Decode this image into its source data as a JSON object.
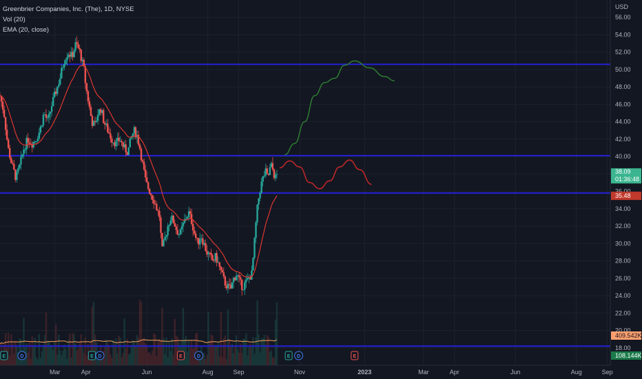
{
  "legend": {
    "title": "Greenbrier Companies, Inc. (The), 1D, NYSE",
    "volume": "Vol (20)",
    "ema": "EMA (20, close)"
  },
  "colors": {
    "background": "#131722",
    "up": "#26a69a",
    "down": "#ef5350",
    "ema": "#e0372f",
    "hline": "#2421d8",
    "green_projection": "#2e7d32",
    "red_projection": "#c62828",
    "vol_ma": "#f7a35c",
    "price_badge": "#3bb58f",
    "ema_badge": "#c0392b",
    "vol_badge": "#ff9f6e",
    "vol_badge2": "#1b7a4a",
    "text": "#b2b5be"
  },
  "chart_data": {
    "type": "candlestick",
    "title": "Greenbrier Companies, Inc. (The), 1D, NYSE",
    "currency": "USD",
    "ylim": [
      16.0,
      58.0
    ],
    "y_ticks": [
      "56.00",
      "54.00",
      "52.00",
      "50.00",
      "48.00",
      "46.00",
      "44.00",
      "42.00",
      "40.00",
      "38.00",
      "36.00",
      "34.00",
      "32.00",
      "30.00",
      "28.00",
      "26.00",
      "24.00",
      "22.00",
      "20.00",
      "18.00"
    ],
    "x_ticks": [
      "Mar",
      "Apr",
      "Jun",
      "Aug",
      "Sep",
      "Nov",
      "2023",
      "Mar",
      "Apr",
      "Jun",
      "Aug",
      "Sep"
    ],
    "x_tick_days": [
      55,
      86,
      147,
      208,
      239,
      300,
      365,
      424,
      455,
      516,
      577,
      608
    ],
    "xlim": [
      0,
      611
    ],
    "price_anchors": [
      [
        0,
        47
      ],
      [
        4,
        45
      ],
      [
        8,
        41
      ],
      [
        12,
        39
      ],
      [
        16,
        37.5
      ],
      [
        20,
        39
      ],
      [
        24,
        41
      ],
      [
        28,
        42
      ],
      [
        32,
        41.5
      ],
      [
        36,
        42
      ],
      [
        40,
        43
      ],
      [
        44,
        45
      ],
      [
        48,
        44
      ],
      [
        52,
        46
      ],
      [
        56,
        47.5
      ],
      [
        60,
        49
      ],
      [
        64,
        51
      ],
      [
        68,
        52
      ],
      [
        72,
        51.5
      ],
      [
        76,
        53
      ],
      [
        80,
        52
      ],
      [
        84,
        50
      ],
      [
        86,
        48
      ],
      [
        89,
        46
      ],
      [
        92,
        44
      ],
      [
        95,
        43.5
      ],
      [
        98,
        45
      ],
      [
        101,
        45.5
      ],
      [
        104,
        44
      ],
      [
        108,
        43
      ],
      [
        112,
        42
      ],
      [
        116,
        41.5
      ],
      [
        120,
        42
      ],
      [
        124,
        41
      ],
      [
        128,
        40.5
      ],
      [
        131,
        42
      ],
      [
        134,
        43
      ],
      [
        137,
        42.5
      ],
      [
        140,
        41
      ],
      [
        143,
        39
      ],
      [
        146,
        37
      ],
      [
        150,
        36
      ],
      [
        154,
        35
      ],
      [
        157,
        34
      ],
      [
        160,
        33
      ],
      [
        162,
        29
      ],
      [
        165,
        30.5
      ],
      [
        168,
        32
      ],
      [
        171,
        33
      ],
      [
        174,
        32.5
      ],
      [
        177,
        31.5
      ],
      [
        180,
        31
      ],
      [
        183,
        32
      ],
      [
        186,
        33
      ],
      [
        189,
        33.5
      ],
      [
        192,
        32.5
      ],
      [
        195,
        31
      ],
      [
        198,
        30
      ],
      [
        201,
        31
      ],
      [
        204,
        30
      ],
      [
        207,
        29
      ],
      [
        210,
        28.5
      ],
      [
        213,
        28
      ],
      [
        216,
        28.5
      ],
      [
        219,
        27.5
      ],
      [
        222,
        26.5
      ],
      [
        225,
        25.5
      ],
      [
        228,
        25
      ],
      [
        231,
        24.8
      ],
      [
        234,
        26
      ],
      [
        237,
        26.5
      ],
      [
        240,
        25.5
      ],
      [
        243,
        25
      ],
      [
        246,
        25.5
      ],
      [
        249,
        26
      ],
      [
        252,
        26.5
      ],
      [
        254,
        29
      ],
      [
        256,
        32
      ],
      [
        258,
        34.5
      ],
      [
        260,
        36
      ],
      [
        262,
        37
      ],
      [
        264,
        37.8
      ],
      [
        266,
        38.2
      ],
      [
        268,
        37.5
      ],
      [
        270,
        38.5
      ],
      [
        272,
        39
      ],
      [
        274,
        38
      ],
      [
        276,
        37.5
      ],
      [
        278,
        38.1
      ]
    ],
    "horizontal_lines": [
      50.6,
      40.1,
      35.8,
      18.2
    ],
    "green_projection": [
      [
        285,
        40.2
      ],
      [
        295,
        41.5
      ],
      [
        305,
        44
      ],
      [
        315,
        47
      ],
      [
        325,
        48.5
      ],
      [
        335,
        49
      ],
      [
        345,
        50.5
      ],
      [
        355,
        51
      ],
      [
        370,
        50.2
      ],
      [
        385,
        49.2
      ],
      [
        395,
        48.7
      ]
    ],
    "red_projection": [
      [
        280,
        38.7
      ],
      [
        290,
        39.5
      ],
      [
        300,
        38.8
      ],
      [
        310,
        37
      ],
      [
        320,
        36.3
      ],
      [
        330,
        37.2
      ],
      [
        340,
        38.8
      ],
      [
        350,
        39.6
      ],
      [
        360,
        38.5
      ],
      [
        372,
        36.8
      ]
    ],
    "last_price": "38.09",
    "countdown": "01:36:48",
    "ema_value": "35.48",
    "volume_ma_value": "409.542K",
    "volume_value": "108.144K",
    "last_price_value": 38.09,
    "ema_last_value": 35.48
  }
}
